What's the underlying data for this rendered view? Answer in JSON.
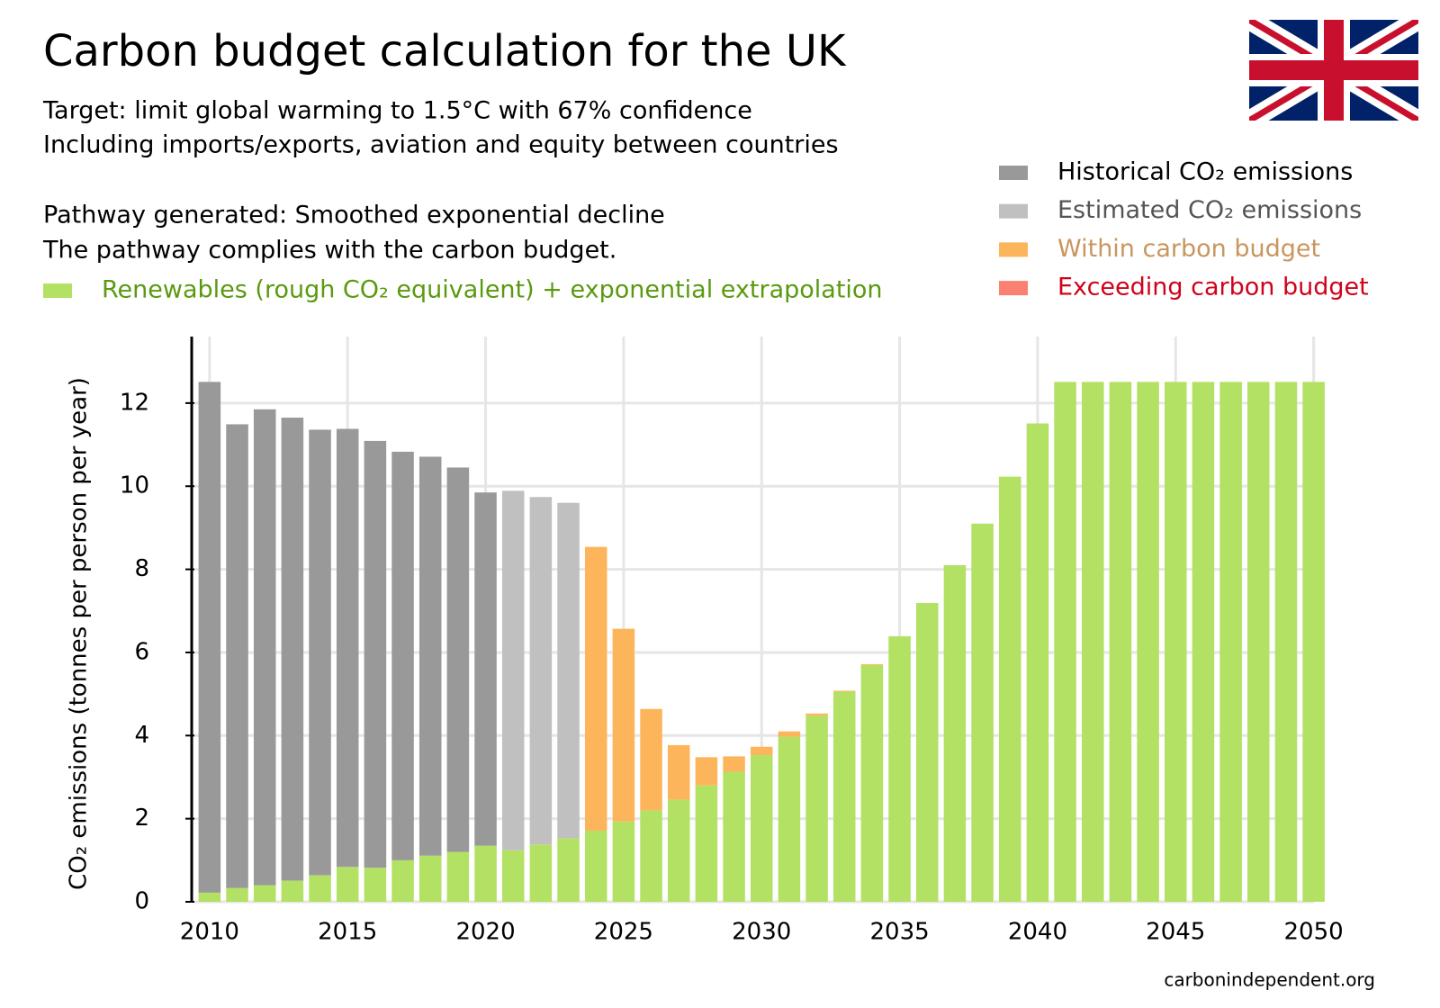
{
  "chart_data": {
    "type": "stacked-bar",
    "title": "Carbon budget calculation for the UK",
    "subtitle_lines": [
      "Target: limit global warming to 1.5°C with 67% confidence",
      "Including imports/exports, aviation and equity between countries",
      "Pathway generated: Smoothed exponential decline",
      "The pathway complies with the carbon budget."
    ],
    "y_label": "CO₂ emissions (tonnes per person per year)",
    "source": "carbonindependent.org",
    "x": [
      2010,
      2011,
      2012,
      2013,
      2014,
      2015,
      2016,
      2017,
      2018,
      2019,
      2020,
      2021,
      2022,
      2023,
      2024,
      2025,
      2026,
      2027,
      2028,
      2029,
      2030,
      2031,
      2032,
      2033,
      2034,
      2035,
      2036,
      2037,
      2038,
      2039,
      2040,
      2041,
      2042,
      2043,
      2044,
      2045,
      2046,
      2047,
      2048,
      2049,
      2050
    ],
    "series": [
      {
        "name": "Renewables (rough CO₂ equivalent) + exponential extrapolation",
        "color": "#b3e164",
        "label_color": "#5a9a10",
        "values": [
          0.22,
          0.33,
          0.4,
          0.51,
          0.64,
          0.84,
          0.82,
          1.0,
          1.11,
          1.2,
          1.35,
          1.24,
          1.38,
          1.53,
          1.71,
          1.93,
          2.2,
          2.46,
          2.8,
          3.13,
          3.53,
          3.97,
          4.48,
          5.06,
          5.7,
          6.39,
          7.19,
          8.1,
          9.1,
          10.23,
          11.51,
          12.51,
          12.51,
          12.51,
          12.51,
          12.51,
          12.51,
          12.51,
          12.51,
          12.51,
          12.51
        ]
      },
      {
        "name": "Historical CO₂ emissions",
        "color": "#999999",
        "label_color": "#000000",
        "values": [
          12.29,
          11.16,
          11.45,
          11.14,
          10.72,
          10.54,
          10.27,
          9.83,
          9.6,
          9.25,
          8.5,
          null,
          null,
          null,
          null,
          null,
          null,
          null,
          null,
          null,
          null,
          null,
          null,
          null,
          null,
          null,
          null,
          null,
          null,
          null,
          null,
          null,
          null,
          null,
          null,
          null,
          null,
          null,
          null,
          null,
          null
        ]
      },
      {
        "name": "Estimated CO₂ emissions",
        "color": "#c0c0c0",
        "label_color": "#555555",
        "values": [
          null,
          null,
          null,
          null,
          null,
          null,
          null,
          null,
          null,
          null,
          null,
          8.65,
          8.36,
          8.07,
          null,
          null,
          null,
          null,
          null,
          null,
          null,
          null,
          null,
          null,
          null,
          null,
          null,
          null,
          null,
          null,
          null,
          null,
          null,
          null,
          null,
          null,
          null,
          null,
          null,
          null,
          null
        ]
      },
      {
        "name": "Within carbon budget",
        "color": "#fdb55c",
        "label_color": "#c8965e",
        "values": [
          null,
          null,
          null,
          null,
          null,
          null,
          null,
          null,
          null,
          null,
          null,
          null,
          null,
          null,
          6.83,
          4.64,
          2.44,
          1.31,
          0.68,
          0.37,
          0.2,
          0.13,
          0.05,
          0.02,
          0.02,
          null,
          null,
          null,
          null,
          null,
          null,
          null,
          null,
          null,
          null,
          null,
          null,
          null,
          null,
          null,
          null
        ]
      },
      {
        "name": "Exceeding carbon budget",
        "color": "#fa8072",
        "label_color": "#d0021b",
        "values": [
          null,
          null,
          null,
          null,
          null,
          null,
          null,
          null,
          null,
          null,
          null,
          null,
          null,
          null,
          null,
          null,
          null,
          null,
          null,
          null,
          null,
          null,
          null,
          null,
          null,
          null,
          null,
          null,
          null,
          null,
          null,
          null,
          null,
          null,
          null,
          null,
          null,
          null,
          null,
          null,
          null
        ]
      }
    ],
    "xlim": [
      2009.45,
      2050.6
    ],
    "xticks": [
      2010,
      2015,
      2020,
      2025,
      2030,
      2035,
      2040,
      2045,
      2050
    ],
    "ylim": [
      0,
      13.6
    ],
    "yticks": [
      0,
      2,
      4,
      6,
      8,
      10,
      12
    ],
    "grid": true
  }
}
